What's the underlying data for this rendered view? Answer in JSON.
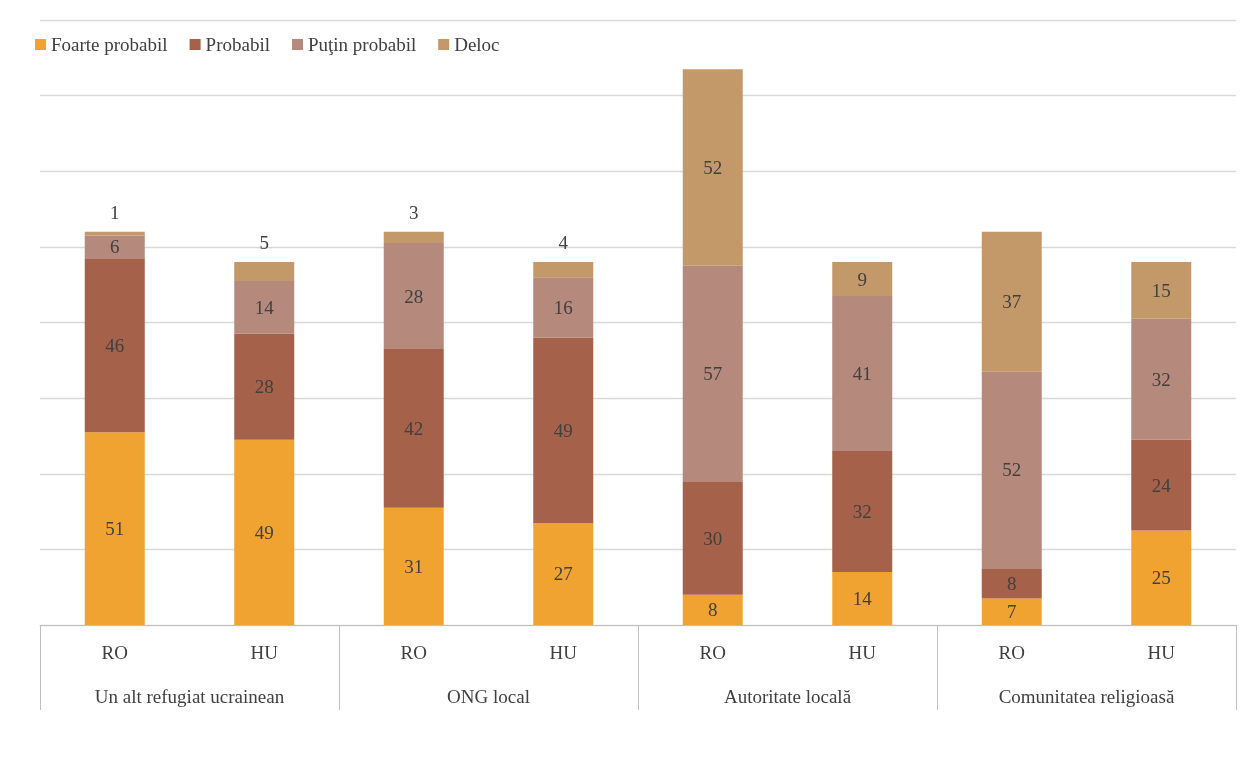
{
  "chart_data": {
    "type": "bar",
    "stacked": true,
    "data_labels": true,
    "grid": "y",
    "legend": "top left",
    "tick_labels": "x",
    "categories": [
      "RO",
      "HU",
      "RO",
      "HU",
      "RO",
      "HU",
      "RO",
      "HU"
    ],
    "annotations": [
      "Un alt refugiat ucrainean",
      "ONG local",
      "Autoritate locală",
      "Comunitatea religioasă"
    ],
    "ylim": [
      0,
      160
    ],
    "yticks": [
      {
        "value": 0,
        "label": null
      },
      {
        "value": 20,
        "label": null
      },
      {
        "value": 40,
        "label": null
      },
      {
        "value": 60,
        "label": null
      },
      {
        "value": 80,
        "label": null
      },
      {
        "value": 100,
        "label": null
      },
      {
        "value": 120,
        "label": null
      },
      {
        "value": 140,
        "label": null
      },
      {
        "value": 160,
        "label": null
      }
    ],
    "series": [
      {
        "name": "Foarte probabil",
        "color": "#f0a330",
        "values": [
          51,
          49,
          31,
          27,
          8,
          14,
          7,
          25
        ]
      },
      {
        "name": "Probabil",
        "color": "#a5614a",
        "values": [
          46,
          28,
          42,
          49,
          30,
          32,
          8,
          24
        ]
      },
      {
        "name": "Puţin probabil",
        "color": "#b5897c",
        "values": [
          6,
          14,
          28,
          16,
          57,
          41,
          52,
          32
        ]
      },
      {
        "name": "Deloc",
        "color": "#c4996a",
        "values": [
          1,
          5,
          3,
          4,
          52,
          9,
          37,
          15
        ]
      }
    ]
  }
}
